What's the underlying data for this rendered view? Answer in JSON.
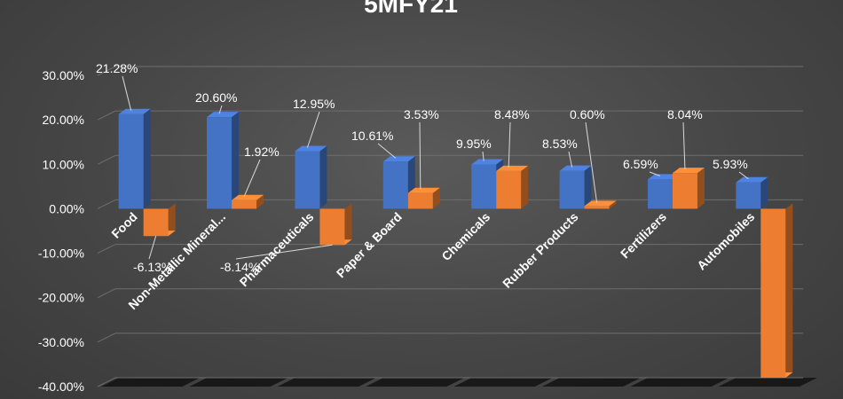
{
  "chart_data": {
    "type": "bar",
    "title": "5MFY21",
    "categories": [
      "Food",
      "Non-Metallic Mineral...",
      "Pharmaceuticals",
      "Paper & Board",
      "Chemicals",
      "Rubber Products",
      "Fertilizers",
      "Automobiles"
    ],
    "series": [
      {
        "values": [
          21.28,
          20.6,
          12.95,
          10.61,
          9.95,
          8.53,
          6.59,
          5.93
        ]
      },
      {
        "values": [
          -6.13,
          1.92,
          -8.14,
          3.53,
          8.48,
          0.6,
          8.04,
          -38.0
        ]
      }
    ],
    "data_labels": [
      [
        "21.28%",
        "20.60%",
        "12.95%",
        "10.61%",
        "9.95%",
        "8.53%",
        "6.59%",
        "5.93%"
      ],
      [
        "-6.13%",
        "1.92%",
        "-8.14%",
        "3.53%",
        "8.48%",
        "0.60%",
        "8.04%",
        ""
      ]
    ],
    "y_ticks": [
      "30.00%",
      "20.00%",
      "10.00%",
      "0.00%",
      "-10.00%",
      "-20.00%",
      "-30.00%",
      "-40.00%"
    ],
    "ylim": [
      -40,
      30
    ],
    "grid": true,
    "legend": "none",
    "style": "3d-clustered-column"
  },
  "colors": {
    "series1": "#4472C4",
    "series2": "#ED7D31",
    "text": "#ffffff",
    "grid": "#6e6e6e"
  }
}
